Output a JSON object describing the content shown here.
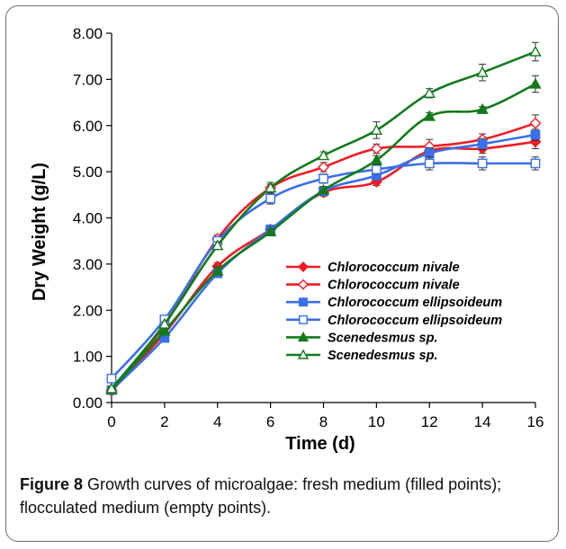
{
  "caption": {
    "label": "Figure 8",
    "text": " Growth curves of microalgae: fresh medium (filled points); flocculated medium (empty points)."
  },
  "chart_data": {
    "type": "line",
    "title": "",
    "xlabel": "Time (d)",
    "ylabel": "Dry Weight (g/L)",
    "xlim": [
      0,
      16
    ],
    "ylim": [
      0,
      8
    ],
    "x": [
      0,
      2,
      4,
      6,
      8,
      10,
      12,
      14,
      16
    ],
    "x_ticks": [
      "0",
      "2",
      "4",
      "6",
      "8",
      "10",
      "12",
      "14",
      "16"
    ],
    "y_ticks": [
      "0.00",
      "1.00",
      "2.00",
      "3.00",
      "4.00",
      "5.00",
      "6.00",
      "7.00",
      "8.00"
    ],
    "y_tick_values": [
      0,
      1,
      2,
      3,
      4,
      5,
      6,
      7,
      8
    ],
    "grid": false,
    "legend_position": "center-right",
    "series": [
      {
        "name": "Chlorococcum nivale",
        "color": "#ee1c25",
        "marker": "diamond",
        "filled": true,
        "values": [
          0.25,
          1.5,
          2.95,
          3.75,
          4.55,
          4.78,
          5.45,
          5.5,
          5.65
        ],
        "errors": [
          0.03,
          0.05,
          0.08,
          0.05,
          0.08,
          0.08,
          0.12,
          0.1,
          0.15
        ]
      },
      {
        "name": "Chlorococcum nivale",
        "color": "#ee1c25",
        "marker": "diamond",
        "filled": false,
        "values": [
          0.27,
          1.68,
          3.55,
          4.65,
          5.1,
          5.5,
          5.55,
          5.7,
          6.05
        ],
        "errors": [
          0.03,
          0.06,
          0.08,
          0.12,
          0.1,
          0.1,
          0.15,
          0.12,
          0.18
        ]
      },
      {
        "name": "Chlorococcum ellipsoideum",
        "color": "#3b6fe8",
        "marker": "square",
        "filled": true,
        "values": [
          0.27,
          1.4,
          2.8,
          3.75,
          4.58,
          4.92,
          5.4,
          5.6,
          5.8
        ],
        "errors": [
          0.03,
          0.05,
          0.08,
          0.06,
          0.08,
          0.1,
          0.12,
          0.12,
          0.12
        ]
      },
      {
        "name": "Chlorococcum ellipsoideum",
        "color": "#3b6fe8",
        "marker": "square",
        "filled": false,
        "values": [
          0.52,
          1.8,
          3.5,
          4.42,
          4.85,
          5.05,
          5.18,
          5.18,
          5.18
        ],
        "errors": [
          0.05,
          0.06,
          0.08,
          0.12,
          0.1,
          0.1,
          0.14,
          0.14,
          0.14
        ]
      },
      {
        "name": "Scenedesmus sp.",
        "color": "#137a1c",
        "marker": "triangle",
        "filled": true,
        "values": [
          0.28,
          1.55,
          2.85,
          3.7,
          4.6,
          5.25,
          6.2,
          6.35,
          6.9
        ],
        "errors": [
          0.03,
          0.05,
          0.08,
          0.05,
          0.08,
          0.1,
          0.08,
          0.06,
          0.18
        ]
      },
      {
        "name": "Scenedesmus sp.",
        "color": "#137a1c",
        "marker": "triangle",
        "filled": false,
        "values": [
          0.3,
          1.7,
          3.4,
          4.65,
          5.35,
          5.9,
          6.7,
          7.15,
          7.6
        ],
        "errors": [
          0.03,
          0.05,
          0.08,
          0.08,
          0.08,
          0.18,
          0.1,
          0.18,
          0.2
        ]
      }
    ]
  }
}
